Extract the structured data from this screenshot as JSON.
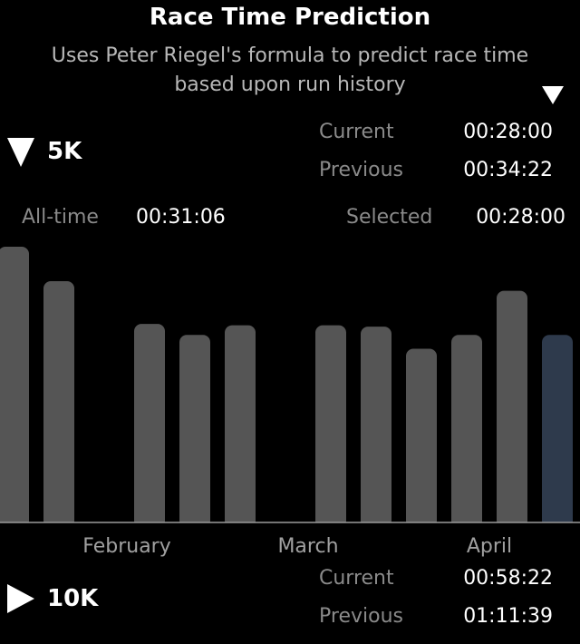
{
  "header": {
    "title": "Race Time Prediction",
    "subtitle": "Uses Peter Riegel's formula  to predict race time\nbased upon run history"
  },
  "section_5k": {
    "name": "5K",
    "expanded": true,
    "current_label": "Current",
    "current_value": "00:28:00",
    "previous_label": "Previous",
    "previous_value": "00:34:22",
    "alltime_label": "All-time",
    "alltime_value": "00:31:06",
    "selected_label": "Selected",
    "selected_value": "00:28:00"
  },
  "section_10k": {
    "name": "10K",
    "expanded": false,
    "current_label": "Current",
    "current_value": "00:58:22",
    "previous_label": "Previous",
    "previous_value": "01:11:39"
  },
  "colors": {
    "bar": "#555555",
    "selected_bar": "#2e3a4c",
    "axis": "#9a9a9a"
  },
  "chart_data": {
    "type": "bar",
    "month_labels": [
      "February",
      "March",
      "April"
    ],
    "relative_heights": [
      1.0,
      0.875,
      0,
      0.72,
      0.68,
      0.715,
      0,
      0.715,
      0.71,
      0.63,
      0.68,
      0.84,
      0.68
    ],
    "selected_index": 12
  }
}
